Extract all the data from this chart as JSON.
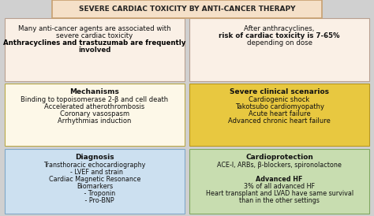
{
  "title": "SEVERE CARDIAC TOXICITY BY ANTI-CANCER THERAPY",
  "title_bg": "#f5e0c8",
  "title_border": "#c8a070",
  "bg_color": "#d0d0d0",
  "fig_w": 4.74,
  "fig_h": 2.74,
  "dpi": 100,
  "boxes": [
    {
      "id": "top_left",
      "col": 0,
      "row": 0,
      "bg": "#faf0e6",
      "border": "#b8a090",
      "header": null,
      "content": [
        {
          "text": "Many anti-cancer agents are associated with",
          "bold": false,
          "size": 6.2
        },
        {
          "text": "severe cardiac toxicity",
          "bold": false,
          "size": 6.2
        },
        {
          "text": "Anthracyclines and trastuzumab are frequently",
          "bold": true,
          "size": 6.2
        },
        {
          "text": "involved",
          "bold": true,
          "size": 6.2
        }
      ],
      "mixed_row": 2,
      "mixed_parts": [
        {
          "text": "Anthracyclines",
          "bold": true
        },
        {
          "text": " and ",
          "bold": false
        },
        {
          "text": "trastuzumab",
          "bold": true
        },
        {
          "text": " are frequently",
          "bold": false
        }
      ]
    },
    {
      "id": "top_right",
      "col": 1,
      "row": 0,
      "bg": "#faf0e6",
      "border": "#b8a090",
      "header": null,
      "content": [
        {
          "text": "After anthracyclines,",
          "bold": false,
          "size": 6.2
        },
        {
          "text": "risk of cardiac toxicity is 7-65%",
          "bold": true,
          "size": 6.2
        },
        {
          "text": "depending on dose",
          "bold": false,
          "size": 6.2
        }
      ]
    },
    {
      "id": "mid_left",
      "col": 0,
      "row": 1,
      "bg": "#fdf8e8",
      "border": "#b8a848",
      "header": "Mechanisms",
      "content": [
        {
          "text": "Binding to topoisomerase 2-β and cell death",
          "bold": false,
          "size": 6.0
        },
        {
          "text": "Accelerated atherothrombosis",
          "bold": false,
          "size": 6.0
        },
        {
          "text": "Coronary vasospasm",
          "bold": false,
          "size": 6.0
        },
        {
          "text": "Arrhythmias induction",
          "bold": false,
          "size": 6.0
        }
      ]
    },
    {
      "id": "mid_right",
      "col": 1,
      "row": 1,
      "bg": "#e8c840",
      "border": "#b89820",
      "header": "Severe clinical scenarios",
      "content": [
        {
          "text": "Cardiogenic shock",
          "bold": false,
          "size": 6.0
        },
        {
          "text": "Takotsubo cardiomyopathy",
          "bold": false,
          "size": 6.0
        },
        {
          "text": "Acute heart failure",
          "bold": false,
          "size": 6.0
        },
        {
          "text": "Advanced chronic heart failure",
          "bold": false,
          "size": 6.0
        }
      ]
    },
    {
      "id": "bot_left",
      "col": 0,
      "row": 2,
      "bg": "#cce0f0",
      "border": "#80a8c8",
      "header": "Diagnosis",
      "content": [
        {
          "text": "Transthoracic echocardiography",
          "bold": false,
          "size": 5.8
        },
        {
          "text": "  - LVEF and strain",
          "bold": false,
          "size": 5.8
        },
        {
          "text": "Cardiac Magnetic Resonance",
          "bold": false,
          "size": 5.8
        },
        {
          "text": "Biomarkers",
          "bold": false,
          "size": 5.8
        },
        {
          "text": "     - Troponin",
          "bold": false,
          "size": 5.8
        },
        {
          "text": "     - Pro-BNP",
          "bold": false,
          "size": 5.8
        }
      ]
    },
    {
      "id": "bot_right",
      "col": 1,
      "row": 2,
      "bg": "#c8ddb0",
      "border": "#80a860",
      "header": "Cardioprotection",
      "content": [
        {
          "text": "ACE-I, ARBs, β-blockers, spironolactone",
          "bold": false,
          "size": 5.8
        },
        {
          "text": " ",
          "bold": false,
          "size": 5.8
        },
        {
          "text": "Advanced HF",
          "bold": true,
          "size": 5.8
        },
        {
          "text": "3% of all advanced HF",
          "bold": false,
          "size": 5.8
        },
        {
          "text": "Heart transplant and LVAD have same survival",
          "bold": false,
          "size": 5.8
        },
        {
          "text": "than in the other settings",
          "bold": false,
          "size": 5.8
        }
      ]
    }
  ]
}
